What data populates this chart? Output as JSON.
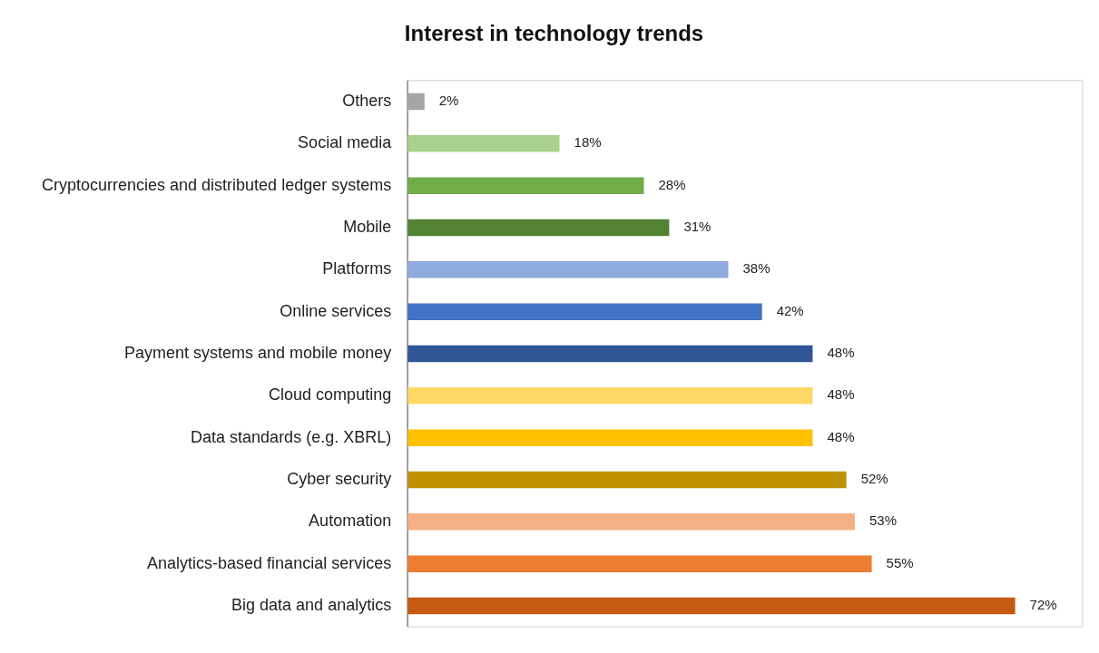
{
  "chart_data": {
    "type": "bar",
    "orientation": "horizontal",
    "title": "Interest in technology trends",
    "categories": [
      "Others",
      "Social media",
      "Cryptocurrencies and distributed ledger systems",
      "Mobile",
      "Platforms",
      "Online services",
      "Payment systems and mobile money",
      "Cloud computing",
      "Data standards (e.g. XBRL)",
      "Cyber security",
      "Automation",
      "Analytics-based financial services",
      "Big data and analytics"
    ],
    "values": [
      2,
      18,
      28,
      31,
      38,
      42,
      48,
      48,
      48,
      52,
      53,
      55,
      72
    ],
    "colors": [
      "#a5a5a5",
      "#a9d18e",
      "#70ad47",
      "#548235",
      "#8faadc",
      "#4472c4",
      "#2f5597",
      "#ffd966",
      "#ffc000",
      "#bf9000",
      "#f4b183",
      "#ed7d31",
      "#c55a11"
    ],
    "value_labels": [
      "2%",
      "18%",
      "28%",
      "31%",
      "38%",
      "42%",
      "48%",
      "48%",
      "48%",
      "52%",
      "53%",
      "55%",
      "72%"
    ],
    "tick_labels": "y",
    "grid": false,
    "legend": false
  }
}
